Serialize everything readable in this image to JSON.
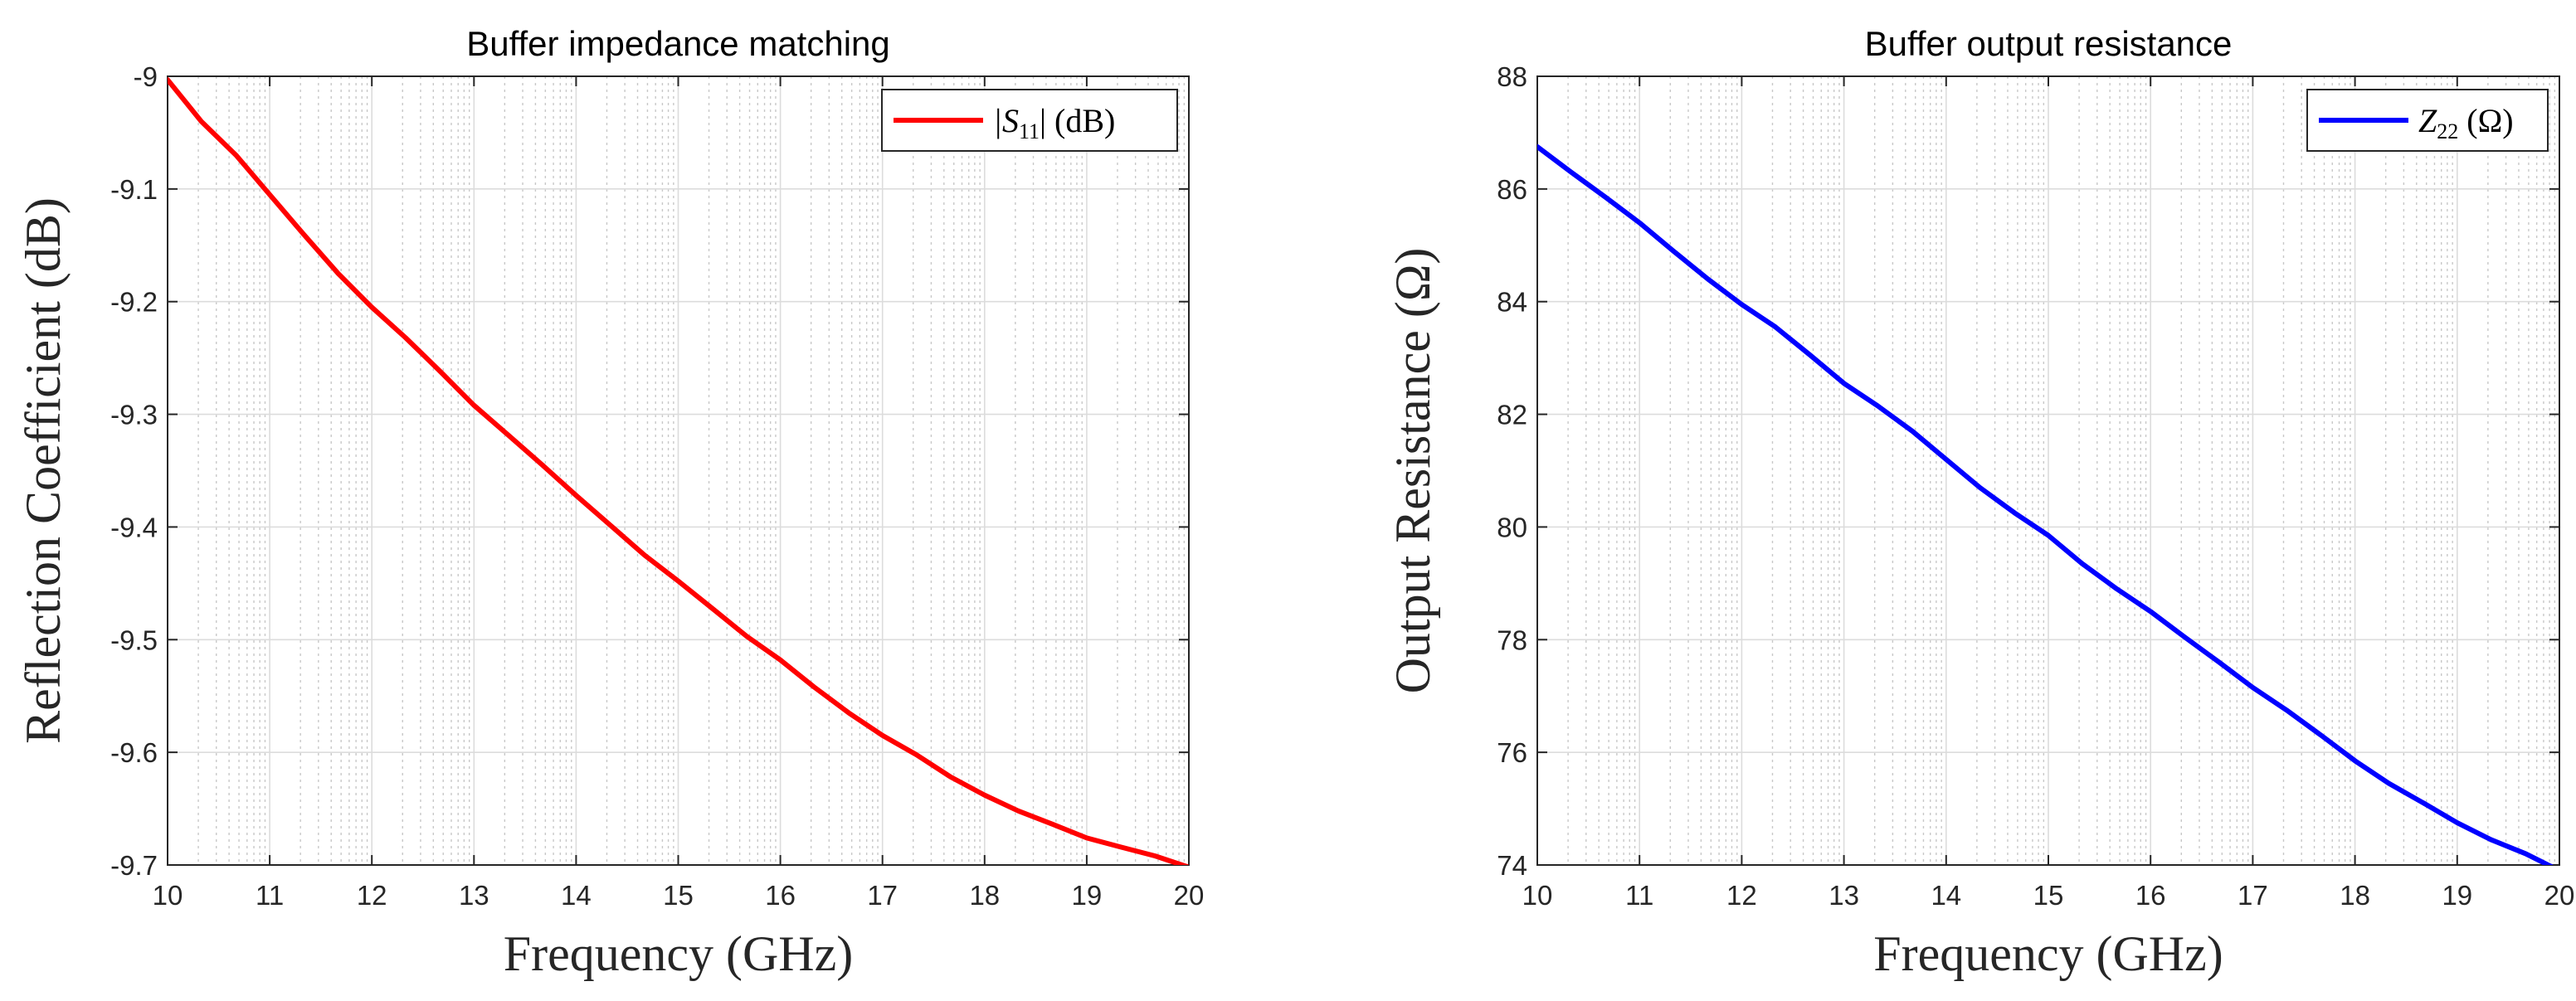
{
  "chart_data": [
    {
      "type": "line",
      "title": "Buffer impedance matching",
      "xlabel": "Frequency (GHz)",
      "ylabel": "Reflection Coefficient (dB)",
      "xlim": [
        10,
        20
      ],
      "ylim": [
        -9.7,
        -9
      ],
      "xticks": [
        10,
        11,
        12,
        13,
        14,
        15,
        16,
        17,
        18,
        19,
        20
      ],
      "yticks": [
        -9.7,
        -9.6,
        -9.5,
        -9.4,
        -9.3,
        -9.2,
        -9.1,
        -9
      ],
      "xtick_labels": [
        "10",
        "11",
        "12",
        "13",
        "14",
        "15",
        "16",
        "17",
        "18",
        "19",
        "20"
      ],
      "ytick_labels": [
        "-9.7",
        "-9.6",
        "-9.5",
        "-9.4",
        "-9.3",
        "-9.2",
        "-9.1",
        "-9"
      ],
      "grid": true,
      "minor_grid": true,
      "legend_position": "top-right",
      "series": [
        {
          "name": "|S11| (dB)",
          "legend_label": "|S11| (dB)",
          "legend_prefix": "|S",
          "legend_sub": "11",
          "legend_suffix": "| (dB)",
          "color": "#ff0000",
          "x": [
            10,
            10.33,
            10.67,
            11,
            11.33,
            11.67,
            12,
            12.33,
            12.67,
            13,
            13.33,
            13.67,
            14,
            14.33,
            14.67,
            15,
            15.33,
            15.67,
            16,
            16.33,
            16.67,
            17,
            17.33,
            17.67,
            18,
            18.33,
            18.67,
            19,
            19.33,
            19.67,
            20
          ],
          "y": [
            -9.003,
            -9.04,
            -9.07,
            -9.105,
            -9.14,
            -9.175,
            -9.205,
            -9.232,
            -9.262,
            -9.292,
            -9.318,
            -9.345,
            -9.372,
            -9.398,
            -9.425,
            -9.448,
            -9.472,
            -9.497,
            -9.518,
            -9.542,
            -9.565,
            -9.585,
            -9.602,
            -9.622,
            -9.638,
            -9.652,
            -9.664,
            -9.676,
            -9.684,
            -9.692,
            -9.702
          ]
        }
      ]
    },
    {
      "type": "line",
      "title": "Buffer output resistance",
      "xlabel": "Frequency (GHz)",
      "ylabel": "Output Resistance (Ω)",
      "xlim": [
        10,
        20
      ],
      "ylim": [
        74,
        88
      ],
      "xticks": [
        10,
        11,
        12,
        13,
        14,
        15,
        16,
        17,
        18,
        19,
        20
      ],
      "yticks": [
        74,
        76,
        78,
        80,
        82,
        84,
        86,
        88
      ],
      "xtick_labels": [
        "10",
        "11",
        "12",
        "13",
        "14",
        "15",
        "16",
        "17",
        "18",
        "19",
        "20"
      ],
      "ytick_labels": [
        "74",
        "76",
        "78",
        "80",
        "82",
        "84",
        "86",
        "88"
      ],
      "grid": true,
      "minor_grid": true,
      "legend_position": "top-right",
      "series": [
        {
          "name": "Z22 (Ω)",
          "legend_label": "Z22 (Ω)",
          "legend_prefix": "Z",
          "legend_sub": "22",
          "legend_suffix": " (Ω)",
          "color": "#0000ff",
          "x": [
            10,
            10.33,
            10.67,
            11,
            11.33,
            11.67,
            12,
            12.33,
            12.67,
            13,
            13.33,
            13.67,
            14,
            14.33,
            14.67,
            15,
            15.33,
            15.67,
            16,
            16.33,
            16.67,
            17,
            17.33,
            17.67,
            18,
            18.33,
            18.67,
            19,
            19.33,
            19.67,
            20
          ],
          "y": [
            86.75,
            86.3,
            85.85,
            85.4,
            84.9,
            84.4,
            83.95,
            83.55,
            83.05,
            82.55,
            82.15,
            81.7,
            81.2,
            80.7,
            80.25,
            79.85,
            79.35,
            78.9,
            78.5,
            78.05,
            77.6,
            77.15,
            76.75,
            76.3,
            75.85,
            75.45,
            75.1,
            74.75,
            74.45,
            74.2,
            73.9
          ]
        }
      ]
    }
  ]
}
